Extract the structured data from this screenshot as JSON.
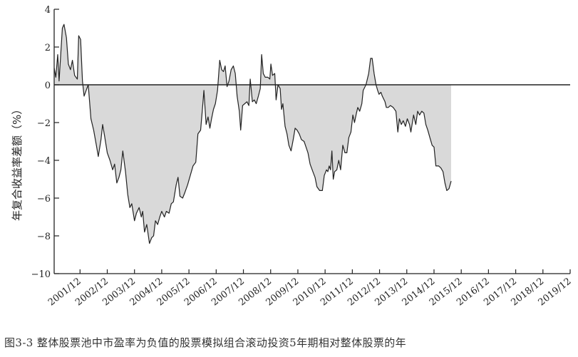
{
  "chart_data": {
    "type": "area",
    "title": "",
    "xlabel": "",
    "ylabel": "年复合收益率差额（%）",
    "ylim": [
      -10,
      4
    ],
    "yticks": [
      4,
      2,
      0,
      -2,
      -4,
      -6,
      -8,
      -10
    ],
    "xlim": [
      2001.0,
      2019.95
    ],
    "xticks": [
      {
        "label": "2001/12",
        "x": 2001.95
      },
      {
        "label": "2002/12",
        "x": 2002.95
      },
      {
        "label": "2003/12",
        "x": 2003.95
      },
      {
        "label": "2004/12",
        "x": 2004.95
      },
      {
        "label": "2005/12",
        "x": 2005.95
      },
      {
        "label": "2006/12",
        "x": 2006.95
      },
      {
        "label": "2007/12",
        "x": 2007.95
      },
      {
        "label": "2008/12",
        "x": 2008.95
      },
      {
        "label": "2009/12",
        "x": 2009.95
      },
      {
        "label": "2010/12",
        "x": 2010.95
      },
      {
        "label": "2011/12",
        "x": 2011.95
      },
      {
        "label": "2012/12",
        "x": 2012.95
      },
      {
        "label": "2013/12",
        "x": 2013.95
      },
      {
        "label": "2014/12",
        "x": 2014.95
      },
      {
        "label": "2015/12",
        "x": 2015.95
      },
      {
        "label": "2016/12",
        "x": 2016.95
      },
      {
        "label": "2017/12",
        "x": 2017.95
      },
      {
        "label": "2018/12",
        "x": 2018.95
      },
      {
        "label": "2019/12",
        "x": 2019.95
      }
    ],
    "fill_color": "#d9d9d9",
    "line_color": "#222222",
    "grid": false,
    "caption": "图3-3 整体股票池中市盈率为负值的股票模拟组合滚动投资5年期相对整体股票的年",
    "series": [
      {
        "points": [
          [
            2001.0,
            0.9
          ],
          [
            2001.06,
            0.4
          ],
          [
            2001.13,
            1.6
          ],
          [
            2001.18,
            0.2
          ],
          [
            2001.3,
            3.0
          ],
          [
            2001.36,
            3.2
          ],
          [
            2001.45,
            2.5
          ],
          [
            2001.52,
            1.1
          ],
          [
            2001.6,
            0.8
          ],
          [
            2001.67,
            1.3
          ],
          [
            2001.75,
            0.5
          ],
          [
            2001.85,
            0.3
          ],
          [
            2001.9,
            2.6
          ],
          [
            2001.97,
            2.4
          ],
          [
            2002.04,
            0.2
          ],
          [
            2002.1,
            -0.6
          ],
          [
            2002.2,
            -0.2
          ],
          [
            2002.25,
            0.0
          ],
          [
            2002.35,
            -1.8
          ],
          [
            2002.45,
            -2.4
          ],
          [
            2002.55,
            -3.2
          ],
          [
            2002.62,
            -3.8
          ],
          [
            2002.72,
            -2.9
          ],
          [
            2002.78,
            -2.1
          ],
          [
            2002.85,
            -2.7
          ],
          [
            2002.95,
            -3.6
          ],
          [
            2003.05,
            -4.0
          ],
          [
            2003.15,
            -4.5
          ],
          [
            2003.22,
            -4.2
          ],
          [
            2003.3,
            -5.2
          ],
          [
            2003.38,
            -4.9
          ],
          [
            2003.45,
            -4.5
          ],
          [
            2003.52,
            -3.5
          ],
          [
            2003.62,
            -4.6
          ],
          [
            2003.7,
            -5.8
          ],
          [
            2003.78,
            -6.5
          ],
          [
            2003.85,
            -6.3
          ],
          [
            2003.95,
            -7.2
          ],
          [
            2004.02,
            -6.8
          ],
          [
            2004.12,
            -6.5
          ],
          [
            2004.2,
            -7.0
          ],
          [
            2004.25,
            -6.7
          ],
          [
            2004.32,
            -7.8
          ],
          [
            2004.4,
            -7.4
          ],
          [
            2004.5,
            -8.4
          ],
          [
            2004.58,
            -8.1
          ],
          [
            2004.65,
            -8.0
          ],
          [
            2004.72,
            -7.2
          ],
          [
            2004.8,
            -7.4
          ],
          [
            2004.88,
            -7.0
          ],
          [
            2004.95,
            -6.7
          ],
          [
            2005.05,
            -7.0
          ],
          [
            2005.12,
            -6.7
          ],
          [
            2005.22,
            -6.8
          ],
          [
            2005.3,
            -6.3
          ],
          [
            2005.38,
            -6.2
          ],
          [
            2005.48,
            -5.3
          ],
          [
            2005.55,
            -4.9
          ],
          [
            2005.62,
            -5.9
          ],
          [
            2005.72,
            -6.0
          ],
          [
            2005.8,
            -5.7
          ],
          [
            2005.9,
            -5.3
          ],
          [
            2006.0,
            -4.8
          ],
          [
            2006.1,
            -4.3
          ],
          [
            2006.2,
            -4.1
          ],
          [
            2006.28,
            -2.6
          ],
          [
            2006.38,
            -2.4
          ],
          [
            2006.45,
            -1.2
          ],
          [
            2006.5,
            -0.3
          ],
          [
            2006.58,
            -2.1
          ],
          [
            2006.65,
            -1.7
          ],
          [
            2006.72,
            -2.3
          ],
          [
            2006.78,
            -1.8
          ],
          [
            2006.85,
            -1.3
          ],
          [
            2006.92,
            -1.0
          ],
          [
            2007.0,
            -0.3
          ],
          [
            2007.08,
            1.3
          ],
          [
            2007.15,
            0.8
          ],
          [
            2007.22,
            0.7
          ],
          [
            2007.28,
            1.0
          ],
          [
            2007.35,
            -0.1
          ],
          [
            2007.42,
            0.2
          ],
          [
            2007.5,
            0.8
          ],
          [
            2007.58,
            1.0
          ],
          [
            2007.65,
            0.6
          ],
          [
            2007.72,
            -0.6
          ],
          [
            2007.8,
            -1.4
          ],
          [
            2007.85,
            -2.4
          ],
          [
            2007.92,
            -1.1
          ],
          [
            2008.0,
            -1.0
          ],
          [
            2008.08,
            -0.9
          ],
          [
            2008.15,
            -1.1
          ],
          [
            2008.2,
            0.3
          ],
          [
            2008.28,
            -0.9
          ],
          [
            2008.35,
            -0.8
          ],
          [
            2008.42,
            -1.0
          ],
          [
            2008.5,
            -0.6
          ],
          [
            2008.57,
            -0.2
          ],
          [
            2008.62,
            1.6
          ],
          [
            2008.68,
            0.6
          ],
          [
            2008.75,
            0.4
          ],
          [
            2008.85,
            0.4
          ],
          [
            2008.92,
            0.3
          ],
          [
            2008.96,
            1.1
          ],
          [
            2009.02,
            0.5
          ],
          [
            2009.1,
            0.6
          ],
          [
            2009.15,
            -0.8
          ],
          [
            2009.22,
            0.0
          ],
          [
            2009.3,
            -0.2
          ],
          [
            2009.35,
            -1.3
          ],
          [
            2009.4,
            -1.0
          ],
          [
            2009.48,
            -2.2
          ],
          [
            2009.55,
            -2.6
          ],
          [
            2009.62,
            -3.2
          ],
          [
            2009.7,
            -3.5
          ],
          [
            2009.78,
            -2.9
          ],
          [
            2009.85,
            -2.3
          ],
          [
            2009.92,
            -2.4
          ],
          [
            2010.0,
            -2.6
          ],
          [
            2010.08,
            -2.9
          ],
          [
            2010.18,
            -3.0
          ],
          [
            2010.25,
            -3.3
          ],
          [
            2010.32,
            -3.6
          ],
          [
            2010.4,
            -4.2
          ],
          [
            2010.5,
            -4.6
          ],
          [
            2010.58,
            -4.9
          ],
          [
            2010.65,
            -5.4
          ],
          [
            2010.75,
            -5.6
          ],
          [
            2010.85,
            -5.6
          ],
          [
            2010.92,
            -4.8
          ],
          [
            2011.0,
            -4.5
          ],
          [
            2011.05,
            -4.6
          ],
          [
            2011.1,
            -4.3
          ],
          [
            2011.15,
            -4.5
          ],
          [
            2011.2,
            -3.5
          ],
          [
            2011.25,
            -5.0
          ],
          [
            2011.3,
            -4.6
          ],
          [
            2011.38,
            -4.5
          ],
          [
            2011.45,
            -4.0
          ],
          [
            2011.52,
            -4.5
          ],
          [
            2011.6,
            -3.2
          ],
          [
            2011.68,
            -3.6
          ],
          [
            2011.75,
            -3.6
          ],
          [
            2011.82,
            -2.8
          ],
          [
            2011.9,
            -2.5
          ],
          [
            2011.97,
            -1.6
          ],
          [
            2012.03,
            -2.0
          ],
          [
            2012.1,
            -1.5
          ],
          [
            2012.15,
            -1.2
          ],
          [
            2012.22,
            -1.4
          ],
          [
            2012.3,
            -1.0
          ],
          [
            2012.35,
            -0.3
          ],
          [
            2012.45,
            0.0
          ],
          [
            2012.55,
            0.6
          ],
          [
            2012.62,
            1.4
          ],
          [
            2012.68,
            1.4
          ],
          [
            2012.75,
            0.6
          ],
          [
            2012.82,
            0.0
          ],
          [
            2012.88,
            -0.3
          ],
          [
            2012.93,
            -0.5
          ],
          [
            2013.0,
            -0.4
          ],
          [
            2013.05,
            -0.6
          ],
          [
            2013.15,
            -0.9
          ],
          [
            2013.2,
            -1.2
          ],
          [
            2013.27,
            -1.2
          ],
          [
            2013.35,
            -1.1
          ],
          [
            2013.45,
            -1.2
          ],
          [
            2013.55,
            -1.4
          ],
          [
            2013.62,
            -2.5
          ],
          [
            2013.68,
            -1.8
          ],
          [
            2013.75,
            -2.1
          ],
          [
            2013.82,
            -1.9
          ],
          [
            2013.9,
            -2.2
          ],
          [
            2013.97,
            -1.8
          ],
          [
            2014.05,
            -2.1
          ],
          [
            2014.1,
            -2.5
          ],
          [
            2014.2,
            -1.6
          ],
          [
            2014.28,
            -2.1
          ],
          [
            2014.35,
            -1.4
          ],
          [
            2014.42,
            -1.6
          ],
          [
            2014.5,
            -1.4
          ],
          [
            2014.58,
            -1.5
          ],
          [
            2014.65,
            -2.1
          ],
          [
            2014.72,
            -2.4
          ],
          [
            2014.8,
            -2.8
          ],
          [
            2014.88,
            -3.2
          ],
          [
            2014.95,
            -3.3
          ],
          [
            2015.02,
            -4.3
          ],
          [
            2015.12,
            -4.3
          ],
          [
            2015.2,
            -4.4
          ],
          [
            2015.28,
            -4.6
          ],
          [
            2015.35,
            -5.2
          ],
          [
            2015.42,
            -5.6
          ],
          [
            2015.5,
            -5.5
          ],
          [
            2015.58,
            -5.1
          ]
        ]
      }
    ]
  }
}
